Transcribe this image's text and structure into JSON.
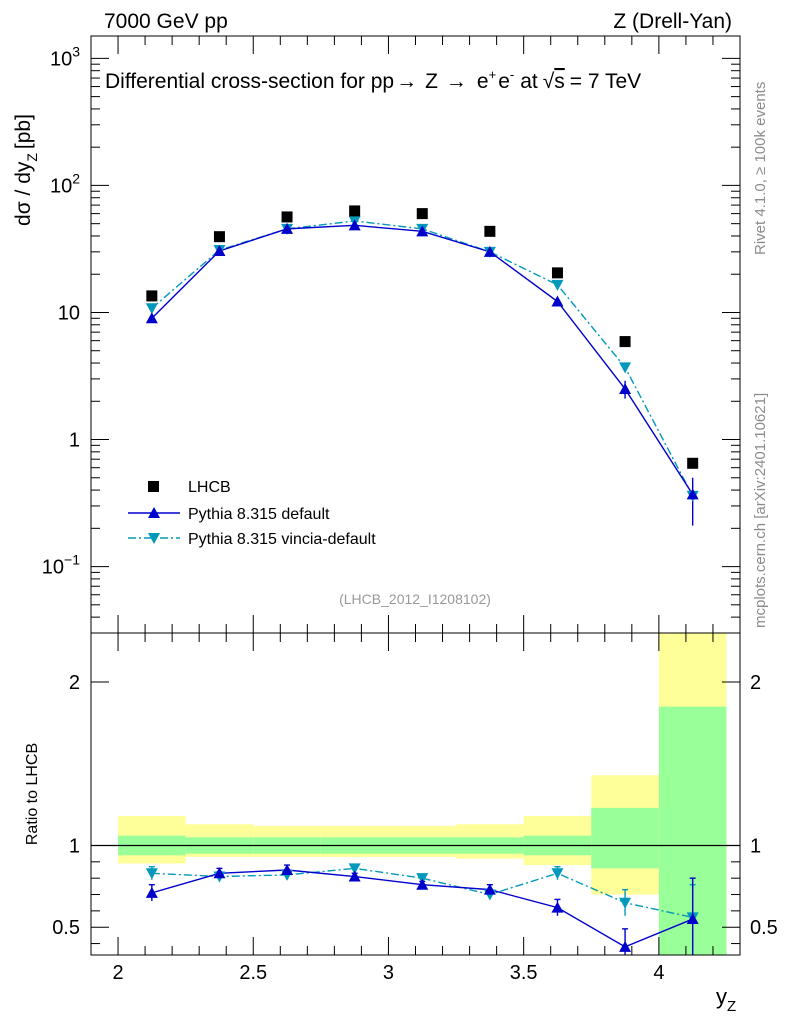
{
  "header": {
    "left": "7000 GeV pp",
    "right": "Z (Drell-Yan)"
  },
  "side_labels": {
    "rivet": "Rivet 4.1.0, ≥ 100k events",
    "mcplots": "mcplots.cern.ch [arXiv:2401.10621]"
  },
  "colors": {
    "lhcb": "#000000",
    "pythia_default": "#0000cc",
    "pythia_vincia": "#0099bb",
    "band_inner": "#99ff99",
    "band_outer": "#ffff99"
  },
  "chart_data": [
    {
      "type": "scatter",
      "title": "Differential cross-section for pp→ Z → e⁺ e⁻ at √s = 7 TeV",
      "title_parts": {
        "prefix": "Differential cross-section for pp",
        "arrow": "→",
        "z": "Z",
        "e1": "e",
        "plus": "+",
        "e2": "e",
        "minus": "-",
        "at": "at",
        "sqrt": "√",
        "s": "s",
        "energy": "= 7 TeV"
      },
      "ylabel": "dσ / dy",
      "ylabel_sub": "Z",
      "ylabel_unit": "[pb]",
      "yscale": "log",
      "ylim": [
        0.03,
        1500
      ],
      "xlim": [
        1.9,
        4.3
      ],
      "y_ticks": [
        {
          "base": "10",
          "exp": "3",
          "value": 1000
        },
        {
          "base": "10",
          "exp": "2",
          "value": 100
        },
        {
          "base": "10",
          "exp": "",
          "value": 10
        },
        {
          "base": "1",
          "exp": "",
          "value": 1
        },
        {
          "base": "10",
          "exp": "−1",
          "value": 0.1
        }
      ],
      "watermark": "(LHCB_2012_I1208102)",
      "legend": {
        "position": "bottom-left",
        "entries": [
          "LHCB",
          "Pythia 8.315 default",
          "Pythia 8.315 vincia-default"
        ]
      },
      "bin_edges": [
        2.0,
        2.25,
        2.5,
        2.75,
        3.0,
        3.25,
        3.5,
        3.75,
        4.0,
        4.25
      ],
      "x": [
        2.125,
        2.375,
        2.625,
        2.875,
        3.125,
        3.375,
        3.625,
        3.875,
        4.125
      ],
      "series": [
        {
          "name": "LHCB",
          "style": "square",
          "values": [
            13.5,
            39.5,
            56.5,
            63.0,
            60.0,
            43.5,
            20.5,
            5.9,
            0.65
          ]
        },
        {
          "name": "Pythia 8.315 default",
          "style": "line-up-triangle",
          "values": [
            9.0,
            30.5,
            45.5,
            48.5,
            43.5,
            30.0,
            12.2,
            2.5,
            0.37
          ]
        },
        {
          "name": "Pythia 8.315 vincia-default",
          "style": "dashdot-down-triangle",
          "values": [
            10.8,
            31.0,
            45.5,
            52.5,
            45.5,
            30.0,
            16.5,
            3.7,
            0.36
          ]
        }
      ]
    },
    {
      "type": "line",
      "ylabel": "Ratio to LHCB",
      "xlabel": "y",
      "xlabel_sub": "Z",
      "ylim": [
        0.33,
        2.3
      ],
      "xlim": [
        1.9,
        4.3
      ],
      "x_ticks": [
        "2",
        "2.5",
        "3",
        "3.5",
        "4"
      ],
      "x_tick_values": [
        2,
        2.5,
        3,
        3.5,
        4
      ],
      "y_ticks": [
        "0.5",
        "1",
        "2"
      ],
      "y_tick_values": [
        0.5,
        1,
        2
      ],
      "bands": {
        "inner_low": [
          0.94,
          0.95,
          0.95,
          0.95,
          0.95,
          0.95,
          0.94,
          0.86,
          0.33
        ],
        "inner_high": [
          1.06,
          1.05,
          1.05,
          1.05,
          1.05,
          1.05,
          1.06,
          1.23,
          1.85
        ],
        "outer_low": [
          0.89,
          0.93,
          0.93,
          0.93,
          0.93,
          0.92,
          0.88,
          0.7,
          0.33
        ],
        "outer_high": [
          1.18,
          1.13,
          1.12,
          1.12,
          1.12,
          1.13,
          1.18,
          1.43,
          2.3
        ]
      },
      "series": [
        {
          "name": "Pythia 8.315 default",
          "values": [
            0.71,
            0.83,
            0.85,
            0.81,
            0.76,
            0.73,
            0.62,
            0.38,
            0.55
          ],
          "errors": [
            0.05,
            0.03,
            0.03,
            0.02,
            0.02,
            0.03,
            0.05,
            0.11,
            0.25
          ]
        },
        {
          "name": "Pythia 8.315 vincia-default",
          "values": [
            0.83,
            0.81,
            0.82,
            0.86,
            0.8,
            0.7,
            0.83,
            0.65,
            0.56
          ],
          "errors": [
            0.04,
            0.03,
            0.03,
            0.02,
            0.02,
            0.03,
            0.04,
            0.08,
            0.2
          ]
        }
      ]
    }
  ]
}
